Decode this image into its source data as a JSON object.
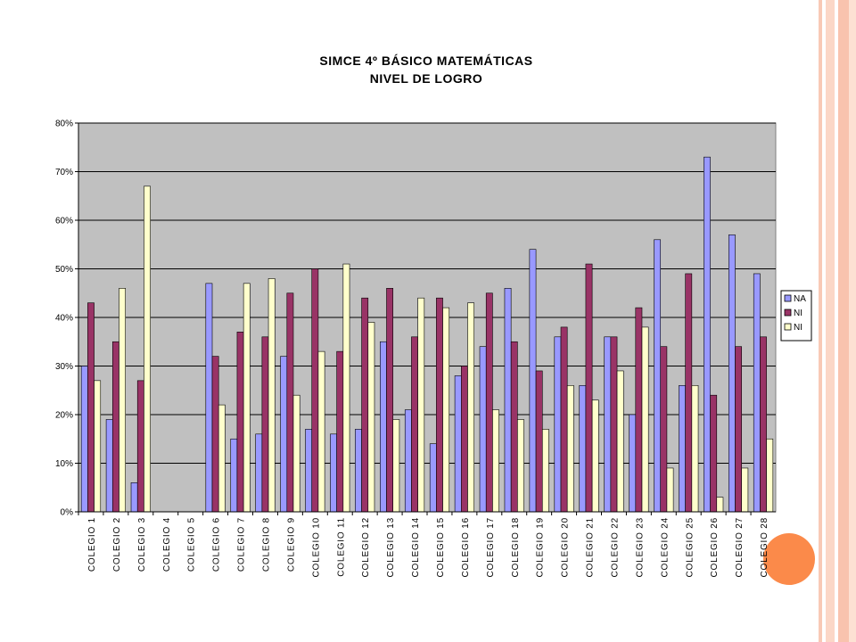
{
  "chart_data": {
    "type": "bar",
    "title": [
      "SIMCE 4º BÁSICO MATEMÁTICAS",
      "NIVEL DE LOGRO"
    ],
    "xlabel": "",
    "ylabel": "",
    "ylim": [
      0,
      0.8
    ],
    "yticks": [
      0,
      0.1,
      0.2,
      0.3,
      0.4,
      0.5,
      0.6,
      0.7,
      0.8
    ],
    "ytick_labels": [
      "0%",
      "10%",
      "20%",
      "30%",
      "40%",
      "50%",
      "60%",
      "70%",
      "80%"
    ],
    "grid": true,
    "legend_position": "right",
    "categories": [
      "COLEGIO 1",
      "COLEGIO 2",
      "COLEGIO 3",
      "COLEGIO 4",
      "COLEGIO 5",
      "COLEGIO 6",
      "COLEGIO 7",
      "COLEGIO 8",
      "COLEGIO 9",
      "COLEGIO 10",
      "COLEGIO 11",
      "COLEGIO 12",
      "COLEGIO 13",
      "COLEGIO 14",
      "COLEGIO 15",
      "COLEGIO 16",
      "COLEGIO 17",
      "COLEGIO 18",
      "COLEGIO 19",
      "COLEGIO 20",
      "COLEGIO 21",
      "COLEGIO 22",
      "COLEGIO 23",
      "COLEGIO 24",
      "COLEGIO 25",
      "COLEGIO 26",
      "COLEGIO 27",
      "COLEGIO 28"
    ],
    "series": [
      {
        "name": "NA",
        "color": "#9999ff",
        "values": [
          0.3,
          0.19,
          0.06,
          0,
          0,
          0.47,
          0.15,
          0.16,
          0.32,
          0.17,
          0.16,
          0.17,
          0.35,
          0.21,
          0.14,
          0.28,
          0.34,
          0.46,
          0.54,
          0.36,
          0.26,
          0.36,
          0.2,
          0.56,
          0.26,
          0.73,
          0.57,
          0.49
        ]
      },
      {
        "name": "NI",
        "color": "#993366",
        "values": [
          0.43,
          0.35,
          0.27,
          0,
          0,
          0.32,
          0.37,
          0.36,
          0.45,
          0.5,
          0.33,
          0.44,
          0.46,
          0.36,
          0.44,
          0.3,
          0.45,
          0.35,
          0.29,
          0.38,
          0.51,
          0.36,
          0.42,
          0.34,
          0.49,
          0.24,
          0.34,
          0.36
        ]
      },
      {
        "name": "NI",
        "color": "#ffffcc",
        "values": [
          0.27,
          0.46,
          0.67,
          0,
          0,
          0.22,
          0.47,
          0.48,
          0.24,
          0.33,
          0.51,
          0.39,
          0.19,
          0.44,
          0.42,
          0.43,
          0.21,
          0.19,
          0.17,
          0.26,
          0.23,
          0.29,
          0.38,
          0.09,
          0.26,
          0.03,
          0.09,
          0.15
        ]
      }
    ],
    "plot_background": "#c0c0c0"
  }
}
